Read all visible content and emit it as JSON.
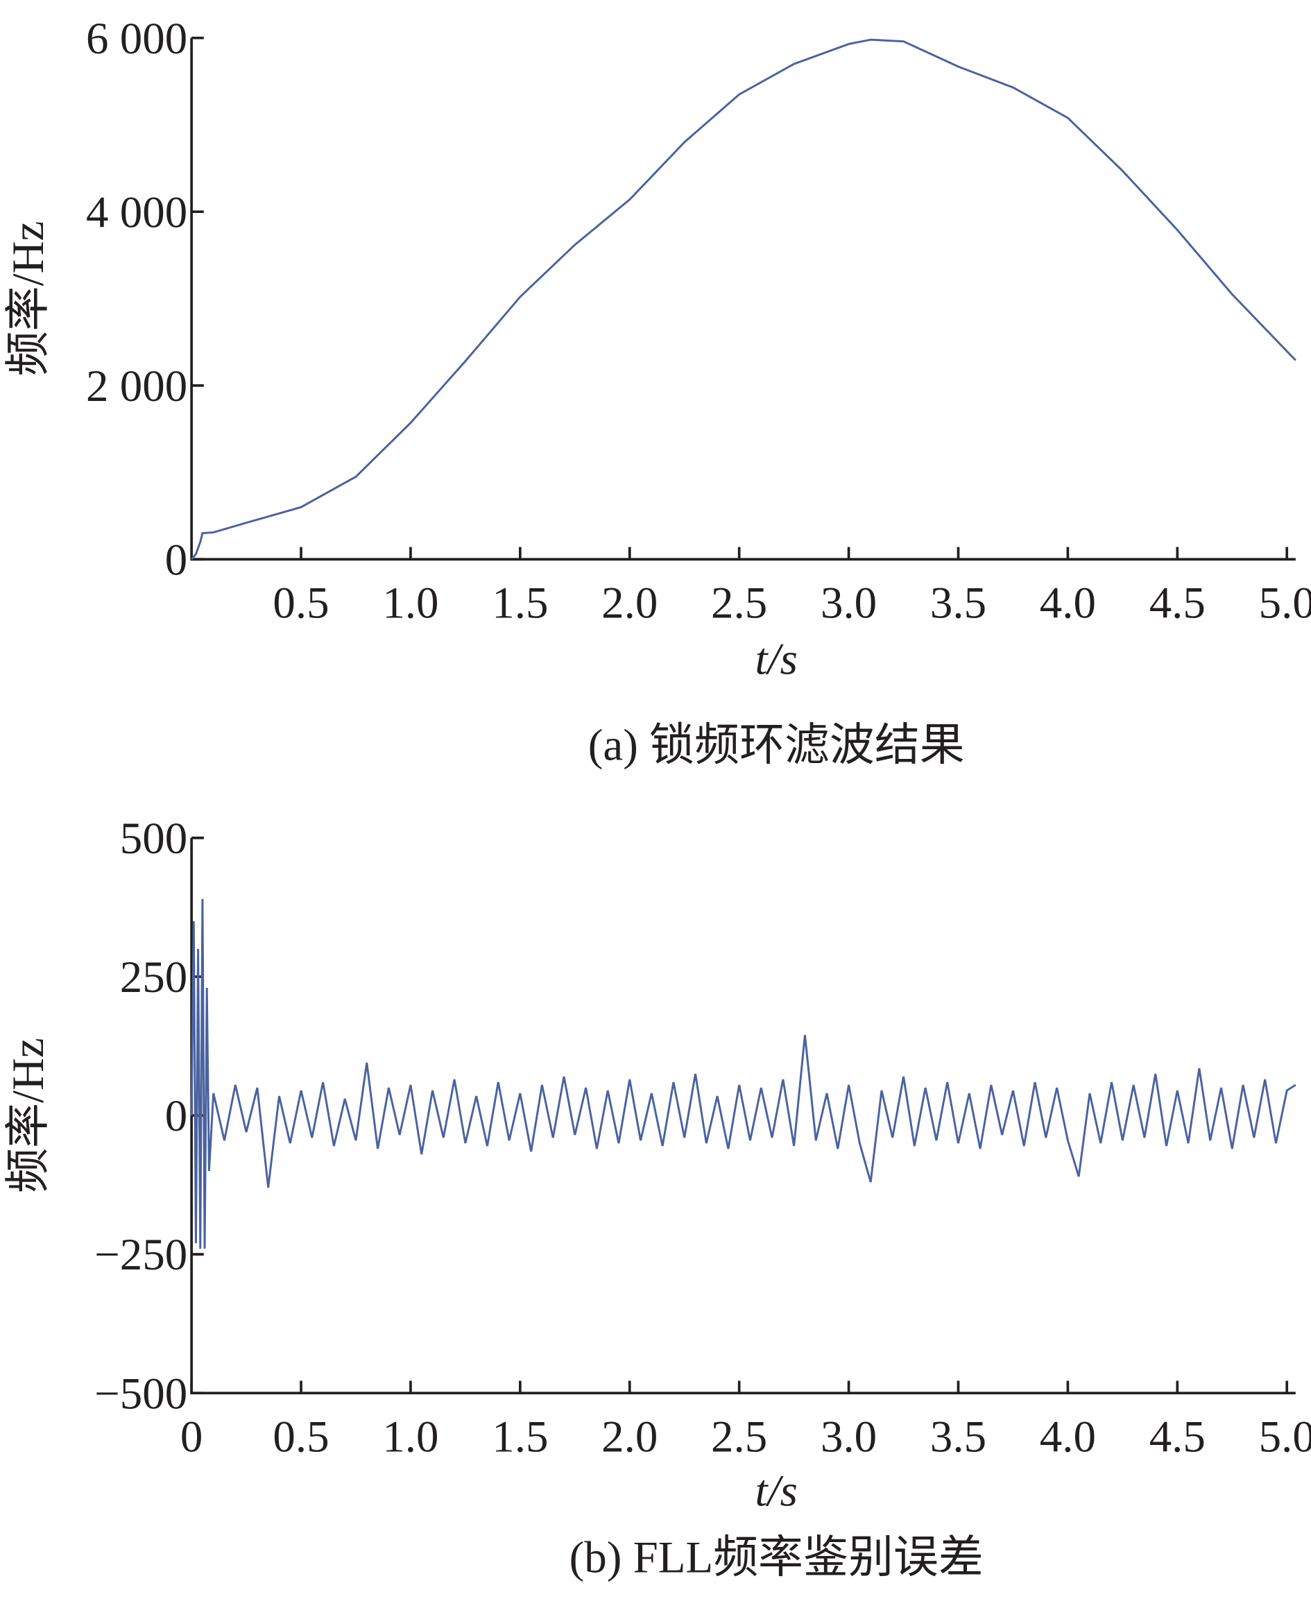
{
  "chart_data": [
    {
      "type": "line",
      "ylabel": "频率/Hz",
      "xlabel": "t/s",
      "caption": "(a) 锁频环滤波结果",
      "color": "#4a62a0",
      "xlim": [
        0,
        5.04
      ],
      "ylim": [
        0,
        6000
      ],
      "xticks": [
        0.5,
        {
          "value": 1,
          "label": "1.0"
        },
        1.5,
        {
          "value": 2,
          "label": "2.0"
        },
        2.5,
        {
          "value": 3,
          "label": "3.0"
        },
        3.5,
        {
          "value": 4,
          "label": "4.0"
        },
        4.5,
        {
          "value": 5,
          "label": "5.0"
        }
      ],
      "yticks": [
        0,
        {
          "value": 2000,
          "label": "2 000"
        },
        {
          "value": 4000,
          "label": "4 000"
        },
        {
          "value": 6000,
          "label": "6 000"
        }
      ],
      "x": [
        0,
        0.02,
        0.04,
        0.05,
        0.1,
        0.25,
        0.5,
        0.75,
        1.0,
        1.25,
        1.5,
        1.75,
        2.0,
        2.25,
        2.5,
        2.75,
        3.0,
        3.1,
        3.25,
        3.5,
        3.75,
        4.0,
        4.25,
        4.5,
        4.75,
        5.04
      ],
      "values": [
        0,
        60,
        200,
        300,
        310,
        420,
        600,
        950,
        1570,
        2280,
        3020,
        3620,
        4140,
        4800,
        5350,
        5700,
        5930,
        5980,
        5960,
        5670,
        5430,
        5080,
        4470,
        3790,
        3050,
        2290
      ]
    },
    {
      "type": "line",
      "ylabel": "频率/Hz",
      "xlabel": "t/s",
      "caption": "(b) FLL频率鉴别误差",
      "color": "#4a62a0",
      "xlim": [
        0,
        5.04
      ],
      "ylim": [
        -500,
        500
      ],
      "xticks": [
        0,
        0.5,
        {
          "value": 1,
          "label": "1.0"
        },
        1.5,
        {
          "value": 2,
          "label": "2.0"
        },
        2.5,
        {
          "value": 3,
          "label": "3.0"
        },
        3.5,
        {
          "value": 4,
          "label": "4.0"
        },
        4.5,
        {
          "value": 5,
          "label": "5.0"
        }
      ],
      "yticks": [
        {
          "value": -500,
          "label": "−500"
        },
        {
          "value": -250,
          "label": "−250"
        },
        0,
        250,
        500
      ],
      "x": [
        0,
        0.01,
        0.02,
        0.03,
        0.04,
        0.05,
        0.06,
        0.07,
        0.08,
        0.1,
        0.15,
        0.2,
        0.25,
        0.3,
        0.35,
        0.4,
        0.45,
        0.5,
        0.55,
        0.6,
        0.65,
        0.7,
        0.75,
        0.8,
        0.85,
        0.9,
        0.95,
        1.0,
        1.05,
        1.1,
        1.15,
        1.2,
        1.25,
        1.3,
        1.35,
        1.4,
        1.45,
        1.5,
        1.55,
        1.6,
        1.65,
        1.7,
        1.75,
        1.8,
        1.85,
        1.9,
        1.95,
        2.0,
        2.05,
        2.1,
        2.15,
        2.2,
        2.25,
        2.3,
        2.35,
        2.4,
        2.45,
        2.5,
        2.55,
        2.6,
        2.65,
        2.7,
        2.75,
        2.8,
        2.85,
        2.9,
        2.95,
        3.0,
        3.05,
        3.1,
        3.15,
        3.2,
        3.25,
        3.3,
        3.35,
        3.4,
        3.45,
        3.5,
        3.55,
        3.6,
        3.65,
        3.7,
        3.75,
        3.8,
        3.85,
        3.9,
        3.95,
        4.0,
        4.05,
        4.1,
        4.15,
        4.2,
        4.25,
        4.3,
        4.35,
        4.4,
        4.45,
        4.5,
        4.55,
        4.6,
        4.65,
        4.7,
        4.75,
        4.8,
        4.85,
        4.9,
        4.95,
        5.0,
        5.04
      ],
      "values": [
        0,
        350,
        -230,
        300,
        -240,
        390,
        -240,
        230,
        -100,
        40,
        -45,
        55,
        -30,
        50,
        -130,
        35,
        -50,
        45,
        -40,
        60,
        -55,
        30,
        -45,
        95,
        -60,
        50,
        -35,
        55,
        -70,
        45,
        -40,
        65,
        -50,
        35,
        -55,
        60,
        -45,
        40,
        -65,
        55,
        -40,
        70,
        -35,
        50,
        -60,
        45,
        -50,
        65,
        -45,
        40,
        -55,
        60,
        -40,
        75,
        -50,
        35,
        -60,
        55,
        -45,
        50,
        -40,
        65,
        -55,
        145,
        -45,
        40,
        -60,
        55,
        -50,
        -120,
        45,
        -40,
        70,
        -55,
        50,
        -45,
        60,
        -50,
        40,
        -60,
        55,
        -35,
        45,
        -55,
        60,
        -40,
        50,
        -45,
        -110,
        40,
        -50,
        60,
        -45,
        55,
        -40,
        75,
        -55,
        45,
        -50,
        85,
        -45,
        50,
        -60,
        55,
        -40,
        65,
        -50,
        45,
        55
      ]
    }
  ]
}
